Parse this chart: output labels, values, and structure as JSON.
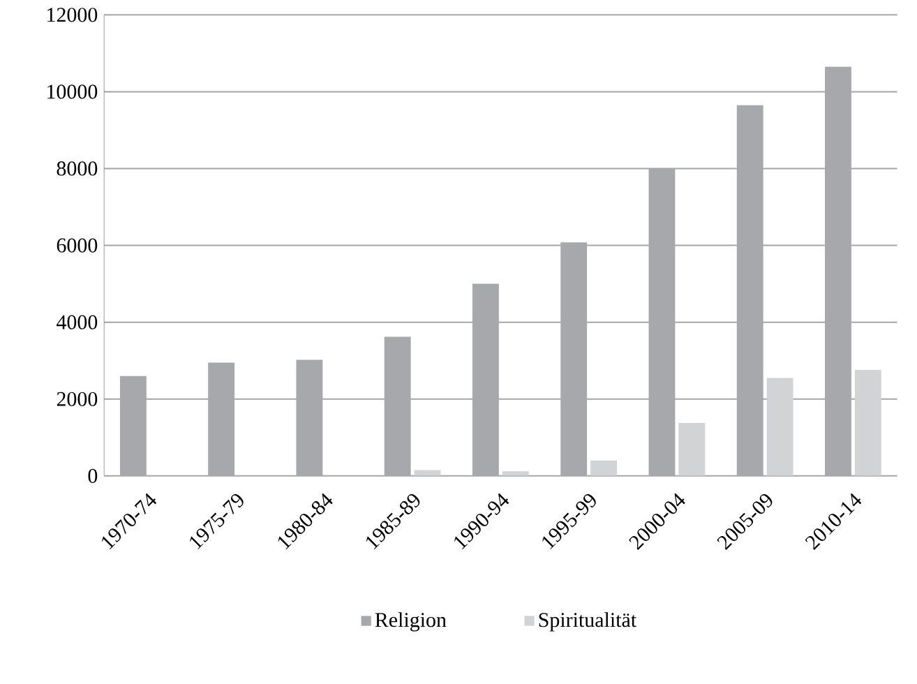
{
  "chart_data": {
    "type": "bar",
    "categories": [
      "1970-74",
      "1975-79",
      "1980-84",
      "1985-89",
      "1990-94",
      "1995-99",
      "2000-04",
      "2005-09",
      "2010-14"
    ],
    "series": [
      {
        "name": "Religion",
        "color": "#a7a8ab",
        "values": [
          2600,
          2950,
          3020,
          3620,
          5000,
          6080,
          8000,
          9650,
          10650
        ]
      },
      {
        "name": "Spiritualität",
        "color": "#d2d3d5",
        "values": [
          0,
          0,
          0,
          150,
          120,
          400,
          1380,
          2550,
          2760
        ]
      }
    ],
    "ylim": [
      0,
      12000
    ],
    "yticks": [
      0,
      2000,
      4000,
      6000,
      8000,
      10000,
      12000
    ],
    "grid": "y",
    "legend": "bottom"
  }
}
